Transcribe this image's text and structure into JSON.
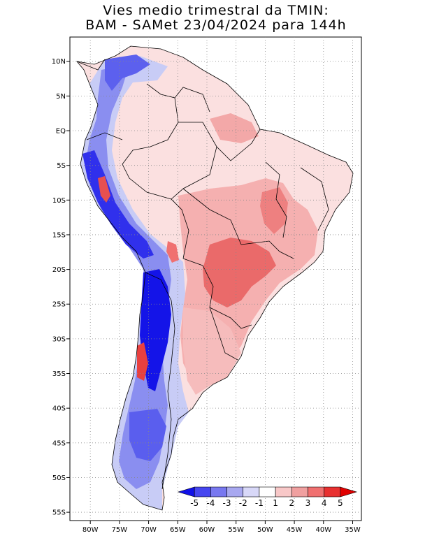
{
  "title": {
    "line1": "Vies medio trimestral da TMIN:",
    "line2": "BAM - SAMet 23/04/2024  para 144h"
  },
  "axes": {
    "lat_labels": [
      "10N",
      "5N",
      "EQ",
      "5S",
      "10S",
      "15S",
      "20S",
      "25S",
      "30S",
      "35S",
      "40S",
      "45S",
      "50S",
      "55S"
    ],
    "lat_values": [
      10,
      5,
      0,
      -5,
      -10,
      -15,
      -20,
      -25,
      -30,
      -35,
      -40,
      -45,
      -50,
      -55
    ],
    "lon_labels": [
      "80W",
      "75W",
      "70W",
      "65W",
      "60W",
      "55W",
      "50W",
      "45W",
      "40W",
      "35W"
    ],
    "lon_values": [
      -80,
      -75,
      -70,
      -65,
      -60,
      -55,
      -50,
      -45,
      -40,
      -35
    ],
    "grid": "dotted"
  },
  "colorbar": {
    "labels": [
      "-5",
      "-4",
      "-3",
      "-2",
      "-1",
      "1",
      "2",
      "3",
      "4",
      "5"
    ],
    "colors": [
      "#1010e8",
      "#4646f0",
      "#7878f0",
      "#a8a8f0",
      "#d8d8f8",
      "#ffffff",
      "#f8c8c8",
      "#f0a0a0",
      "#f07070",
      "#e83030",
      "#e00000"
    ],
    "position": "bottom-right"
  },
  "map_colors": {
    "ocean": "#ffffff",
    "land_base": "#ffffff",
    "warm_light": "#f8d0d0",
    "warm_mid": "#f0a0a0",
    "warm_strong": "#e85050",
    "cold_light": "#d0d4f8",
    "cold_mid": "#8888f0",
    "cold_strong": "#1414e8",
    "border": "#000000"
  }
}
